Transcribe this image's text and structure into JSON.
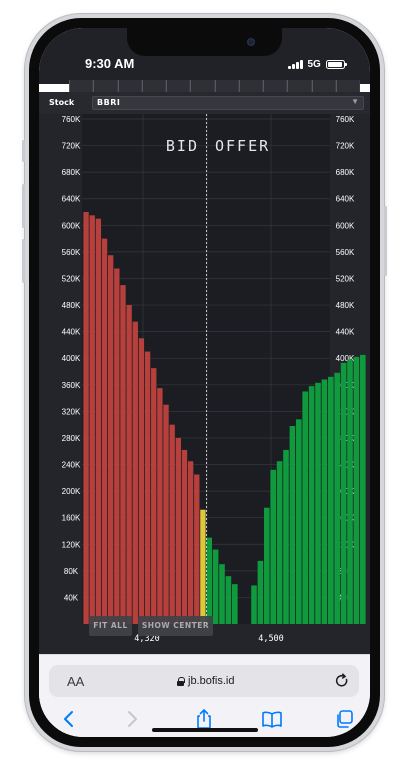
{
  "status_bar": {
    "time": "9:30 AM",
    "network": "5G"
  },
  "top_tabs": [
    "",
    "",
    "",
    "",
    "",
    "",
    "",
    "",
    "",
    "",
    "",
    ""
  ],
  "stock": {
    "label": "Stock",
    "value": "BBRI"
  },
  "chart_data": {
    "type": "bar",
    "bid_label": "BID",
    "offer_label": "OFFER",
    "y_ticks": [
      "40K",
      "80K",
      "120K",
      "160K",
      "200K",
      "240K",
      "280K",
      "320K",
      "360K",
      "400K",
      "440K",
      "480K",
      "520K",
      "560K",
      "600K",
      "640K",
      "680K",
      "720K",
      "760K"
    ],
    "ylim": [
      0,
      760000
    ],
    "x_tick_labels": [
      "4,320",
      "4,500"
    ],
    "bid_values": [
      620000,
      615000,
      610000,
      580000,
      555000,
      535000,
      510000,
      480000,
      455000,
      430000,
      410000,
      385000,
      355000,
      330000,
      300000,
      280000,
      262000,
      245000,
      225000,
      172000
    ],
    "offer_values": [
      130000,
      112000,
      90000,
      72000,
      60000,
      0,
      0,
      58000,
      95000,
      175000,
      232000,
      245000,
      262000,
      298000,
      308000,
      350000,
      358000,
      363000,
      368000,
      372000,
      378000,
      393000,
      398000,
      402000,
      405000
    ],
    "colors": {
      "bid": "#b8403c",
      "bid_highlight": "#e0c63a",
      "offer": "#0f9a3e",
      "bg": "#1b1d22",
      "grid": "#35383e",
      "text": "#ffffff"
    },
    "grid": true,
    "center_line": "dashed"
  },
  "buttons": {
    "fit_all": "FIT ALL",
    "show_center": "SHOW CENTER"
  },
  "browser": {
    "text_size": "AA",
    "url": "jb.bofis.id"
  }
}
